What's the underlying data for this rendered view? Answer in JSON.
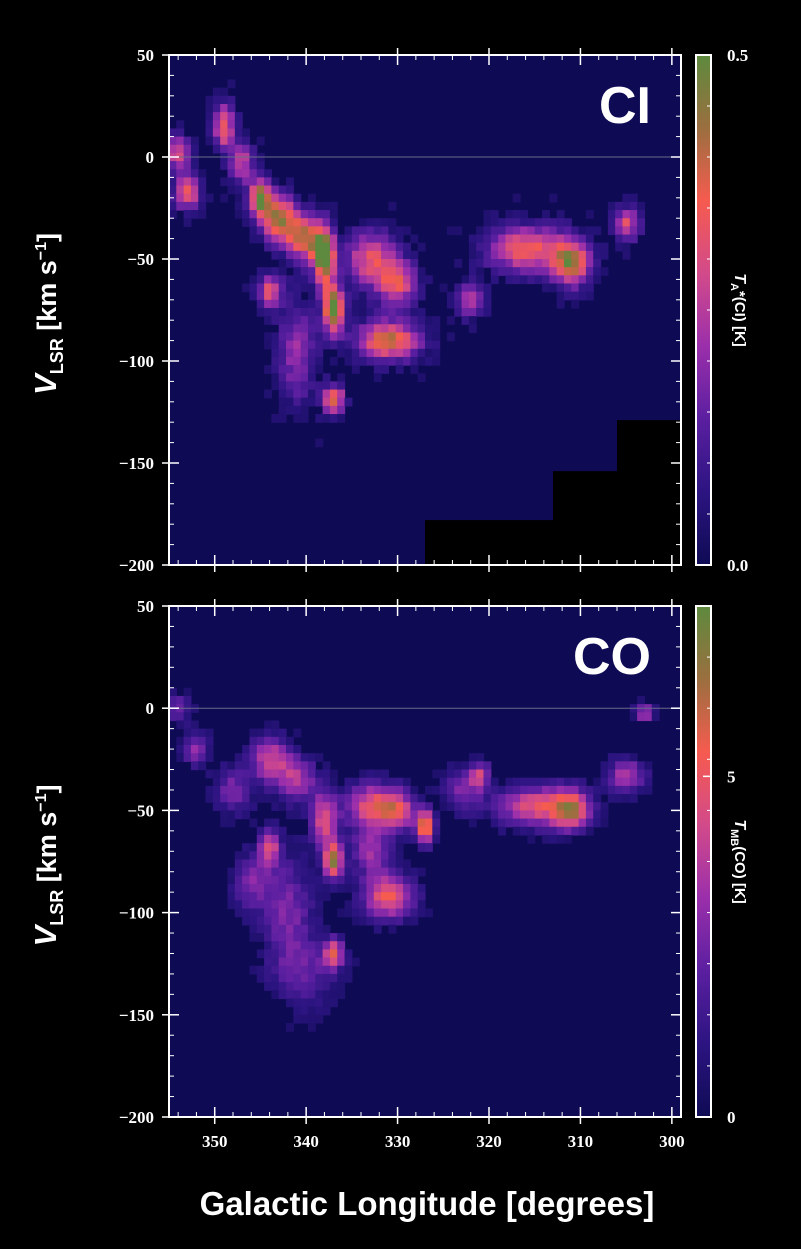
{
  "chart_data": [
    {
      "type": "heatmap",
      "panel_label": "CI",
      "xlabel": "Galactic Longitude  [degrees]",
      "ylabel": {
        "main": "V",
        "sub": "LSR",
        "unit": "  [km s",
        "sup": "−1",
        "close": "]"
      },
      "colorbar_label": {
        "main": "T",
        "sub": "A",
        "rest": "*(CI)  [K]"
      },
      "xlim": [
        355,
        299
      ],
      "ylim": [
        -200,
        50
      ],
      "xticks": [
        350,
        340,
        330,
        320,
        310,
        300
      ],
      "yticks": [
        50,
        0,
        -50,
        -100,
        -150,
        -200
      ],
      "colorbar_range": [
        0.0,
        0.5
      ],
      "colorbar_ticks": [
        "0.0",
        "0.5"
      ],
      "colormap": [
        "#0e0b54",
        "#2c1481",
        "#5a1fa0",
        "#9b2fab",
        "#d24a8a",
        "#f65b4f",
        "#9b6f3f",
        "#5d8a3e"
      ],
      "no_data_mask": [
        {
          "l_from": 327,
          "l_to": 299,
          "v_below": -178
        },
        {
          "l_from": 313,
          "l_to": 299,
          "v_below": -154
        },
        {
          "l_from": 306,
          "l_to": 299,
          "v_below": -129
        }
      ],
      "emission_features": [
        {
          "l": 354,
          "v": 2,
          "amp": 0.3,
          "sl": 1.0,
          "sv": 6
        },
        {
          "l": 353,
          "v": -17,
          "amp": 0.35,
          "sl": 1.0,
          "sv": 6
        },
        {
          "l": 349,
          "v": 15,
          "amp": 0.35,
          "sl": 0.8,
          "sv": 8
        },
        {
          "l": 347,
          "v": -3,
          "amp": 0.25,
          "sl": 1.0,
          "sv": 8
        },
        {
          "l": 345,
          "v": -20,
          "amp": 0.45,
          "sl": 0.8,
          "sv": 6
        },
        {
          "l": 343,
          "v": -30,
          "amp": 0.4,
          "sl": 1.5,
          "sv": 8
        },
        {
          "l": 340,
          "v": -40,
          "amp": 0.38,
          "sl": 1.5,
          "sv": 8
        },
        {
          "l": 338,
          "v": -50,
          "amp": 0.48,
          "sl": 0.8,
          "sv": 10
        },
        {
          "l": 337,
          "v": -75,
          "amp": 0.52,
          "sl": 0.8,
          "sv": 8
        },
        {
          "l": 337,
          "v": -119,
          "amp": 0.4,
          "sl": 0.8,
          "sv": 5
        },
        {
          "l": 344,
          "v": -66,
          "amp": 0.3,
          "sl": 1.0,
          "sv": 6
        },
        {
          "l": 341,
          "v": -96,
          "amp": 0.2,
          "sl": 1.5,
          "sv": 18
        },
        {
          "l": 333,
          "v": -50,
          "amp": 0.3,
          "sl": 2.0,
          "sv": 10
        },
        {
          "l": 330,
          "v": -62,
          "amp": 0.3,
          "sl": 1.5,
          "sv": 8
        },
        {
          "l": 331,
          "v": -90,
          "amp": 0.4,
          "sl": 2.5,
          "sv": 7
        },
        {
          "l": 322,
          "v": -70,
          "amp": 0.25,
          "sl": 1.0,
          "sv": 6
        },
        {
          "l": 316,
          "v": -45,
          "amp": 0.35,
          "sl": 3.0,
          "sv": 8
        },
        {
          "l": 311,
          "v": -52,
          "amp": 0.4,
          "sl": 1.5,
          "sv": 8
        },
        {
          "l": 305,
          "v": -33,
          "amp": 0.3,
          "sl": 1.0,
          "sv": 6
        }
      ],
      "noise_level": 0.06
    },
    {
      "type": "heatmap",
      "panel_label": "CO",
      "xlabel": "Galactic Longitude  [degrees]",
      "ylabel": {
        "main": "V",
        "sub": "LSR",
        "unit": "  [km s",
        "sup": "−1",
        "close": "]"
      },
      "colorbar_label": {
        "main": "T",
        "sub": "MB",
        "rest": "(CO)  [K]"
      },
      "xlim": [
        355,
        299
      ],
      "ylim": [
        -200,
        50
      ],
      "xticks": [
        350,
        340,
        330,
        320,
        310,
        300
      ],
      "xtick_labels": [
        "350",
        "340",
        "330",
        "320",
        "310",
        "300"
      ],
      "yticks": [
        50,
        0,
        -50,
        -100,
        -150,
        -200
      ],
      "colorbar_range": [
        0,
        7.5
      ],
      "colorbar_ticks": [
        {
          "value": 0,
          "label": "0"
        },
        {
          "value": 5,
          "label": "5"
        }
      ],
      "colormap": [
        "#0e0b54",
        "#2c1481",
        "#5a1fa0",
        "#9b2fab",
        "#d24a8a",
        "#f65b4f",
        "#9b6f3f",
        "#5d8a3e"
      ],
      "emission_features": [
        {
          "l": 354,
          "v": 0,
          "amp": 2.5,
          "sl": 1.0,
          "sv": 5
        },
        {
          "l": 352,
          "v": -20,
          "amp": 3.0,
          "sl": 1.0,
          "sv": 6
        },
        {
          "l": 348,
          "v": -40,
          "amp": 2.5,
          "sl": 1.5,
          "sv": 8
        },
        {
          "l": 344,
          "v": -25,
          "amp": 4.0,
          "sl": 1.5,
          "sv": 8
        },
        {
          "l": 341,
          "v": -35,
          "amp": 3.5,
          "sl": 1.5,
          "sv": 8
        },
        {
          "l": 344,
          "v": -68,
          "amp": 4.0,
          "sl": 0.8,
          "sv": 6
        },
        {
          "l": 338,
          "v": -55,
          "amp": 4.5,
          "sl": 1.0,
          "sv": 10
        },
        {
          "l": 337,
          "v": -75,
          "amp": 6.5,
          "sl": 0.7,
          "sv": 6
        },
        {
          "l": 337,
          "v": -120,
          "amp": 4.5,
          "sl": 0.8,
          "sv": 5
        },
        {
          "l": 342,
          "v": -100,
          "amp": 2.5,
          "sl": 2.0,
          "sv": 20
        },
        {
          "l": 340,
          "v": -130,
          "amp": 1.8,
          "sl": 2.5,
          "sv": 12
        },
        {
          "l": 346,
          "v": -85,
          "amp": 2.5,
          "sl": 1.5,
          "sv": 10
        },
        {
          "l": 333,
          "v": -48,
          "amp": 4.5,
          "sl": 2.0,
          "sv": 8
        },
        {
          "l": 330,
          "v": -50,
          "amp": 4.0,
          "sl": 1.5,
          "sv": 7
        },
        {
          "l": 327,
          "v": -58,
          "amp": 6.0,
          "sl": 0.7,
          "sv": 6
        },
        {
          "l": 331,
          "v": -92,
          "amp": 5.0,
          "sl": 2.0,
          "sv": 8
        },
        {
          "l": 333,
          "v": -70,
          "amp": 3.0,
          "sl": 1.5,
          "sv": 8
        },
        {
          "l": 323,
          "v": -40,
          "amp": 2.5,
          "sl": 1.5,
          "sv": 8
        },
        {
          "l": 321,
          "v": -33,
          "amp": 3.5,
          "sl": 0.8,
          "sv": 5
        },
        {
          "l": 315,
          "v": -48,
          "amp": 4.5,
          "sl": 3.0,
          "sv": 7
        },
        {
          "l": 311,
          "v": -50,
          "amp": 5.0,
          "sl": 1.5,
          "sv": 7
        },
        {
          "l": 305,
          "v": -33,
          "amp": 3.5,
          "sl": 1.5,
          "sv": 6
        },
        {
          "l": 303,
          "v": -2,
          "amp": 3.5,
          "sl": 0.8,
          "sv": 3
        }
      ],
      "noise_level": 0.7
    }
  ]
}
